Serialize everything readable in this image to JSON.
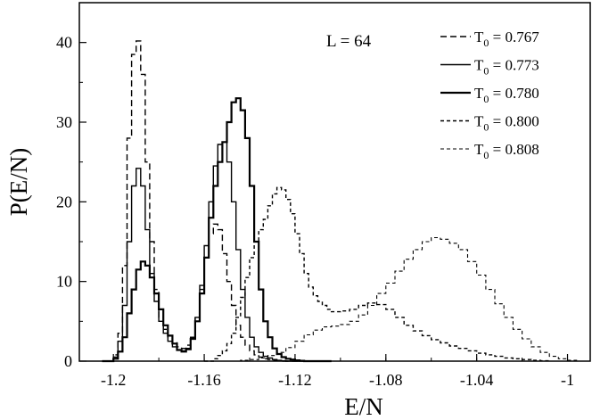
{
  "chart_data": {
    "type": "line",
    "title": "",
    "xlabel": "E/N",
    "ylabel": "P(E/N)",
    "xlim": [
      -1.215,
      -0.99
    ],
    "ylim": [
      0,
      45
    ],
    "x_ticks": [
      -1.2,
      -1.16,
      -1.12,
      -1.08,
      -1.04,
      -1
    ],
    "x_tick_labels": [
      "-1.2",
      "-1.16",
      "-1.12",
      "-1.08",
      "-1.04",
      "-1"
    ],
    "y_ticks": [
      0,
      10,
      20,
      30,
      40
    ],
    "y_tick_labels": [
      "0",
      "10",
      "20",
      "30",
      "40"
    ],
    "annotation": "L = 64",
    "legend_position": "top-right",
    "grid": false,
    "series": [
      {
        "name": "T0 = 0.767",
        "legend_main": "T",
        "legend_sub": "0",
        "legend_value": " = 0.767",
        "dash": "long-dash",
        "stroke_width": 1.4,
        "x": [
          -1.205,
          -1.2,
          -1.198,
          -1.196,
          -1.194,
          -1.192,
          -1.19,
          -1.188,
          -1.186,
          -1.184,
          -1.182,
          -1.18,
          -1.178,
          -1.176,
          -1.174,
          -1.172,
          -1.17,
          -1.168,
          -1.166,
          -1.164,
          -1.162,
          -1.16,
          -1.158,
          -1.156,
          -1.154,
          -1.152,
          -1.15,
          -1.148,
          -1.146,
          -1.144,
          -1.142,
          -1.14,
          -1.138,
          -1.136,
          -1.134,
          -1.132,
          -1.13,
          -1.128,
          -1.126,
          -1.124,
          -1.122,
          -1.12,
          -1.118,
          -1.116,
          -1.114,
          -1.112,
          -1.11,
          -1.108,
          -1.104
        ],
        "y": [
          0,
          0.8,
          3.5,
          12,
          28,
          38.5,
          40.2,
          36,
          25,
          15,
          9,
          5.5,
          4,
          3,
          2.3,
          1.8,
          1.6,
          2,
          3,
          5.5,
          9,
          13,
          16,
          17.2,
          16.5,
          13.5,
          10,
          7,
          4.5,
          3,
          2,
          1.3,
          0.8,
          0.5,
          0.3,
          0.2,
          0.1,
          0.05,
          0,
          0,
          0,
          0,
          0,
          0,
          0,
          0,
          0,
          0,
          0
        ]
      },
      {
        "name": "T0 = 0.773",
        "legend_main": "T",
        "legend_sub": "0",
        "legend_value": " = 0.773",
        "dash": "solid",
        "stroke_width": 1.4,
        "x": [
          -1.205,
          -1.2,
          -1.198,
          -1.196,
          -1.194,
          -1.192,
          -1.19,
          -1.188,
          -1.186,
          -1.184,
          -1.182,
          -1.18,
          -1.178,
          -1.176,
          -1.174,
          -1.172,
          -1.17,
          -1.168,
          -1.166,
          -1.164,
          -1.162,
          -1.16,
          -1.158,
          -1.156,
          -1.154,
          -1.152,
          -1.15,
          -1.148,
          -1.146,
          -1.144,
          -1.142,
          -1.14,
          -1.138,
          -1.136,
          -1.134,
          -1.132,
          -1.13,
          -1.128,
          -1.126,
          -1.124,
          -1.122,
          -1.12,
          -1.118,
          -1.116,
          -1.114,
          -1.112,
          -1.11,
          -1.108,
          -1.104
        ],
        "y": [
          0,
          0.5,
          2.5,
          7,
          15,
          22,
          24.2,
          22,
          16.5,
          11,
          7.5,
          5,
          3.5,
          2.5,
          1.8,
          1.4,
          1.3,
          1.6,
          3,
          5.5,
          9.5,
          14.5,
          20,
          24.5,
          27.2,
          27.5,
          25,
          20,
          14,
          9,
          5.5,
          3,
          1.8,
          1.1,
          0.6,
          0.4,
          0.2,
          0.1,
          0.05,
          0,
          0,
          0,
          0,
          0,
          0,
          0,
          0,
          0,
          0
        ]
      },
      {
        "name": "T0 = 0.780",
        "legend_main": "T",
        "legend_sub": "0",
        "legend_value": " = 0.780",
        "dash": "solid",
        "stroke_width": 2.2,
        "x": [
          -1.205,
          -1.2,
          -1.198,
          -1.196,
          -1.194,
          -1.192,
          -1.19,
          -1.188,
          -1.186,
          -1.184,
          -1.182,
          -1.18,
          -1.178,
          -1.176,
          -1.174,
          -1.172,
          -1.17,
          -1.168,
          -1.166,
          -1.164,
          -1.162,
          -1.16,
          -1.158,
          -1.156,
          -1.154,
          -1.152,
          -1.15,
          -1.148,
          -1.146,
          -1.144,
          -1.142,
          -1.14,
          -1.138,
          -1.136,
          -1.134,
          -1.132,
          -1.13,
          -1.128,
          -1.126,
          -1.124,
          -1.122,
          -1.12,
          -1.118,
          -1.116,
          -1.114,
          -1.112,
          -1.11,
          -1.108,
          -1.104
        ],
        "y": [
          0,
          0.3,
          1.2,
          3,
          6,
          9,
          11.5,
          12.5,
          12,
          10.5,
          8.5,
          6.5,
          4.5,
          3.2,
          2.2,
          1.4,
          1.2,
          1.5,
          2.8,
          5,
          8.5,
          13,
          18,
          22,
          25,
          27.5,
          30,
          32.5,
          33,
          31.5,
          28,
          22,
          15,
          9,
          5,
          3,
          1.6,
          0.9,
          0.5,
          0.3,
          0.2,
          0.1,
          0.05,
          0,
          0,
          0,
          0,
          0,
          0
        ]
      },
      {
        "name": "T0 = 0.800",
        "legend_main": "T",
        "legend_sub": "0",
        "legend_value": " = 0.800",
        "dash": "short-dash",
        "stroke_width": 1.4,
        "x": [
          -1.16,
          -1.156,
          -1.154,
          -1.152,
          -1.15,
          -1.148,
          -1.146,
          -1.144,
          -1.142,
          -1.14,
          -1.138,
          -1.136,
          -1.134,
          -1.132,
          -1.13,
          -1.128,
          -1.126,
          -1.124,
          -1.122,
          -1.12,
          -1.118,
          -1.116,
          -1.114,
          -1.112,
          -1.11,
          -1.108,
          -1.106,
          -1.104,
          -1.1,
          -1.096,
          -1.092,
          -1.088,
          -1.084,
          -1.08,
          -1.076,
          -1.072,
          -1.068,
          -1.064,
          -1.06,
          -1.056,
          -1.052,
          -1.048,
          -1.044,
          -1.04,
          -1.036,
          -1.032,
          -1.028,
          -1.024,
          -1.02,
          -1.016,
          -1.012,
          -1.008
        ],
        "y": [
          0,
          0.3,
          0.7,
          1.3,
          2.2,
          3.5,
          5.5,
          8,
          10.5,
          13,
          15,
          16.5,
          17.8,
          19.5,
          21,
          21.8,
          21.5,
          20.3,
          18.5,
          16,
          13.5,
          11,
          9.3,
          8.2,
          7.5,
          7,
          6.5,
          6.2,
          6.3,
          6.5,
          7,
          7.3,
          7.1,
          6.5,
          5.5,
          4.5,
          3.8,
          3.2,
          2.7,
          2.3,
          1.9,
          1.6,
          1.3,
          1.0,
          0.8,
          0.6,
          0.4,
          0.3,
          0.2,
          0.1,
          0.05,
          0
        ]
      },
      {
        "name": "T0 = 0.808",
        "legend_main": "T",
        "legend_sub": "0",
        "legend_value": " = 0.808",
        "dash": "short-dash",
        "stroke_width": 1.1,
        "x": [
          -1.15,
          -1.144,
          -1.14,
          -1.136,
          -1.132,
          -1.128,
          -1.124,
          -1.12,
          -1.116,
          -1.112,
          -1.108,
          -1.104,
          -1.1,
          -1.096,
          -1.092,
          -1.088,
          -1.084,
          -1.08,
          -1.076,
          -1.072,
          -1.068,
          -1.064,
          -1.06,
          -1.056,
          -1.052,
          -1.048,
          -1.044,
          -1.04,
          -1.036,
          -1.032,
          -1.028,
          -1.024,
          -1.02,
          -1.016,
          -1.012,
          -1.008,
          -1.004,
          -1.0,
          -0.996
        ],
        "y": [
          0,
          0.1,
          0.2,
          0.4,
          0.7,
          1.1,
          1.7,
          2.5,
          3.3,
          3.9,
          4.3,
          4.4,
          4.6,
          5.0,
          5.8,
          7.0,
          8.5,
          9.8,
          11.3,
          12.8,
          14.0,
          15.0,
          15.5,
          15.3,
          14.8,
          14.0,
          12.5,
          10.8,
          9.0,
          7.2,
          5.5,
          4.0,
          2.8,
          1.8,
          1.1,
          0.6,
          0.3,
          0.1,
          0
        ]
      }
    ]
  }
}
